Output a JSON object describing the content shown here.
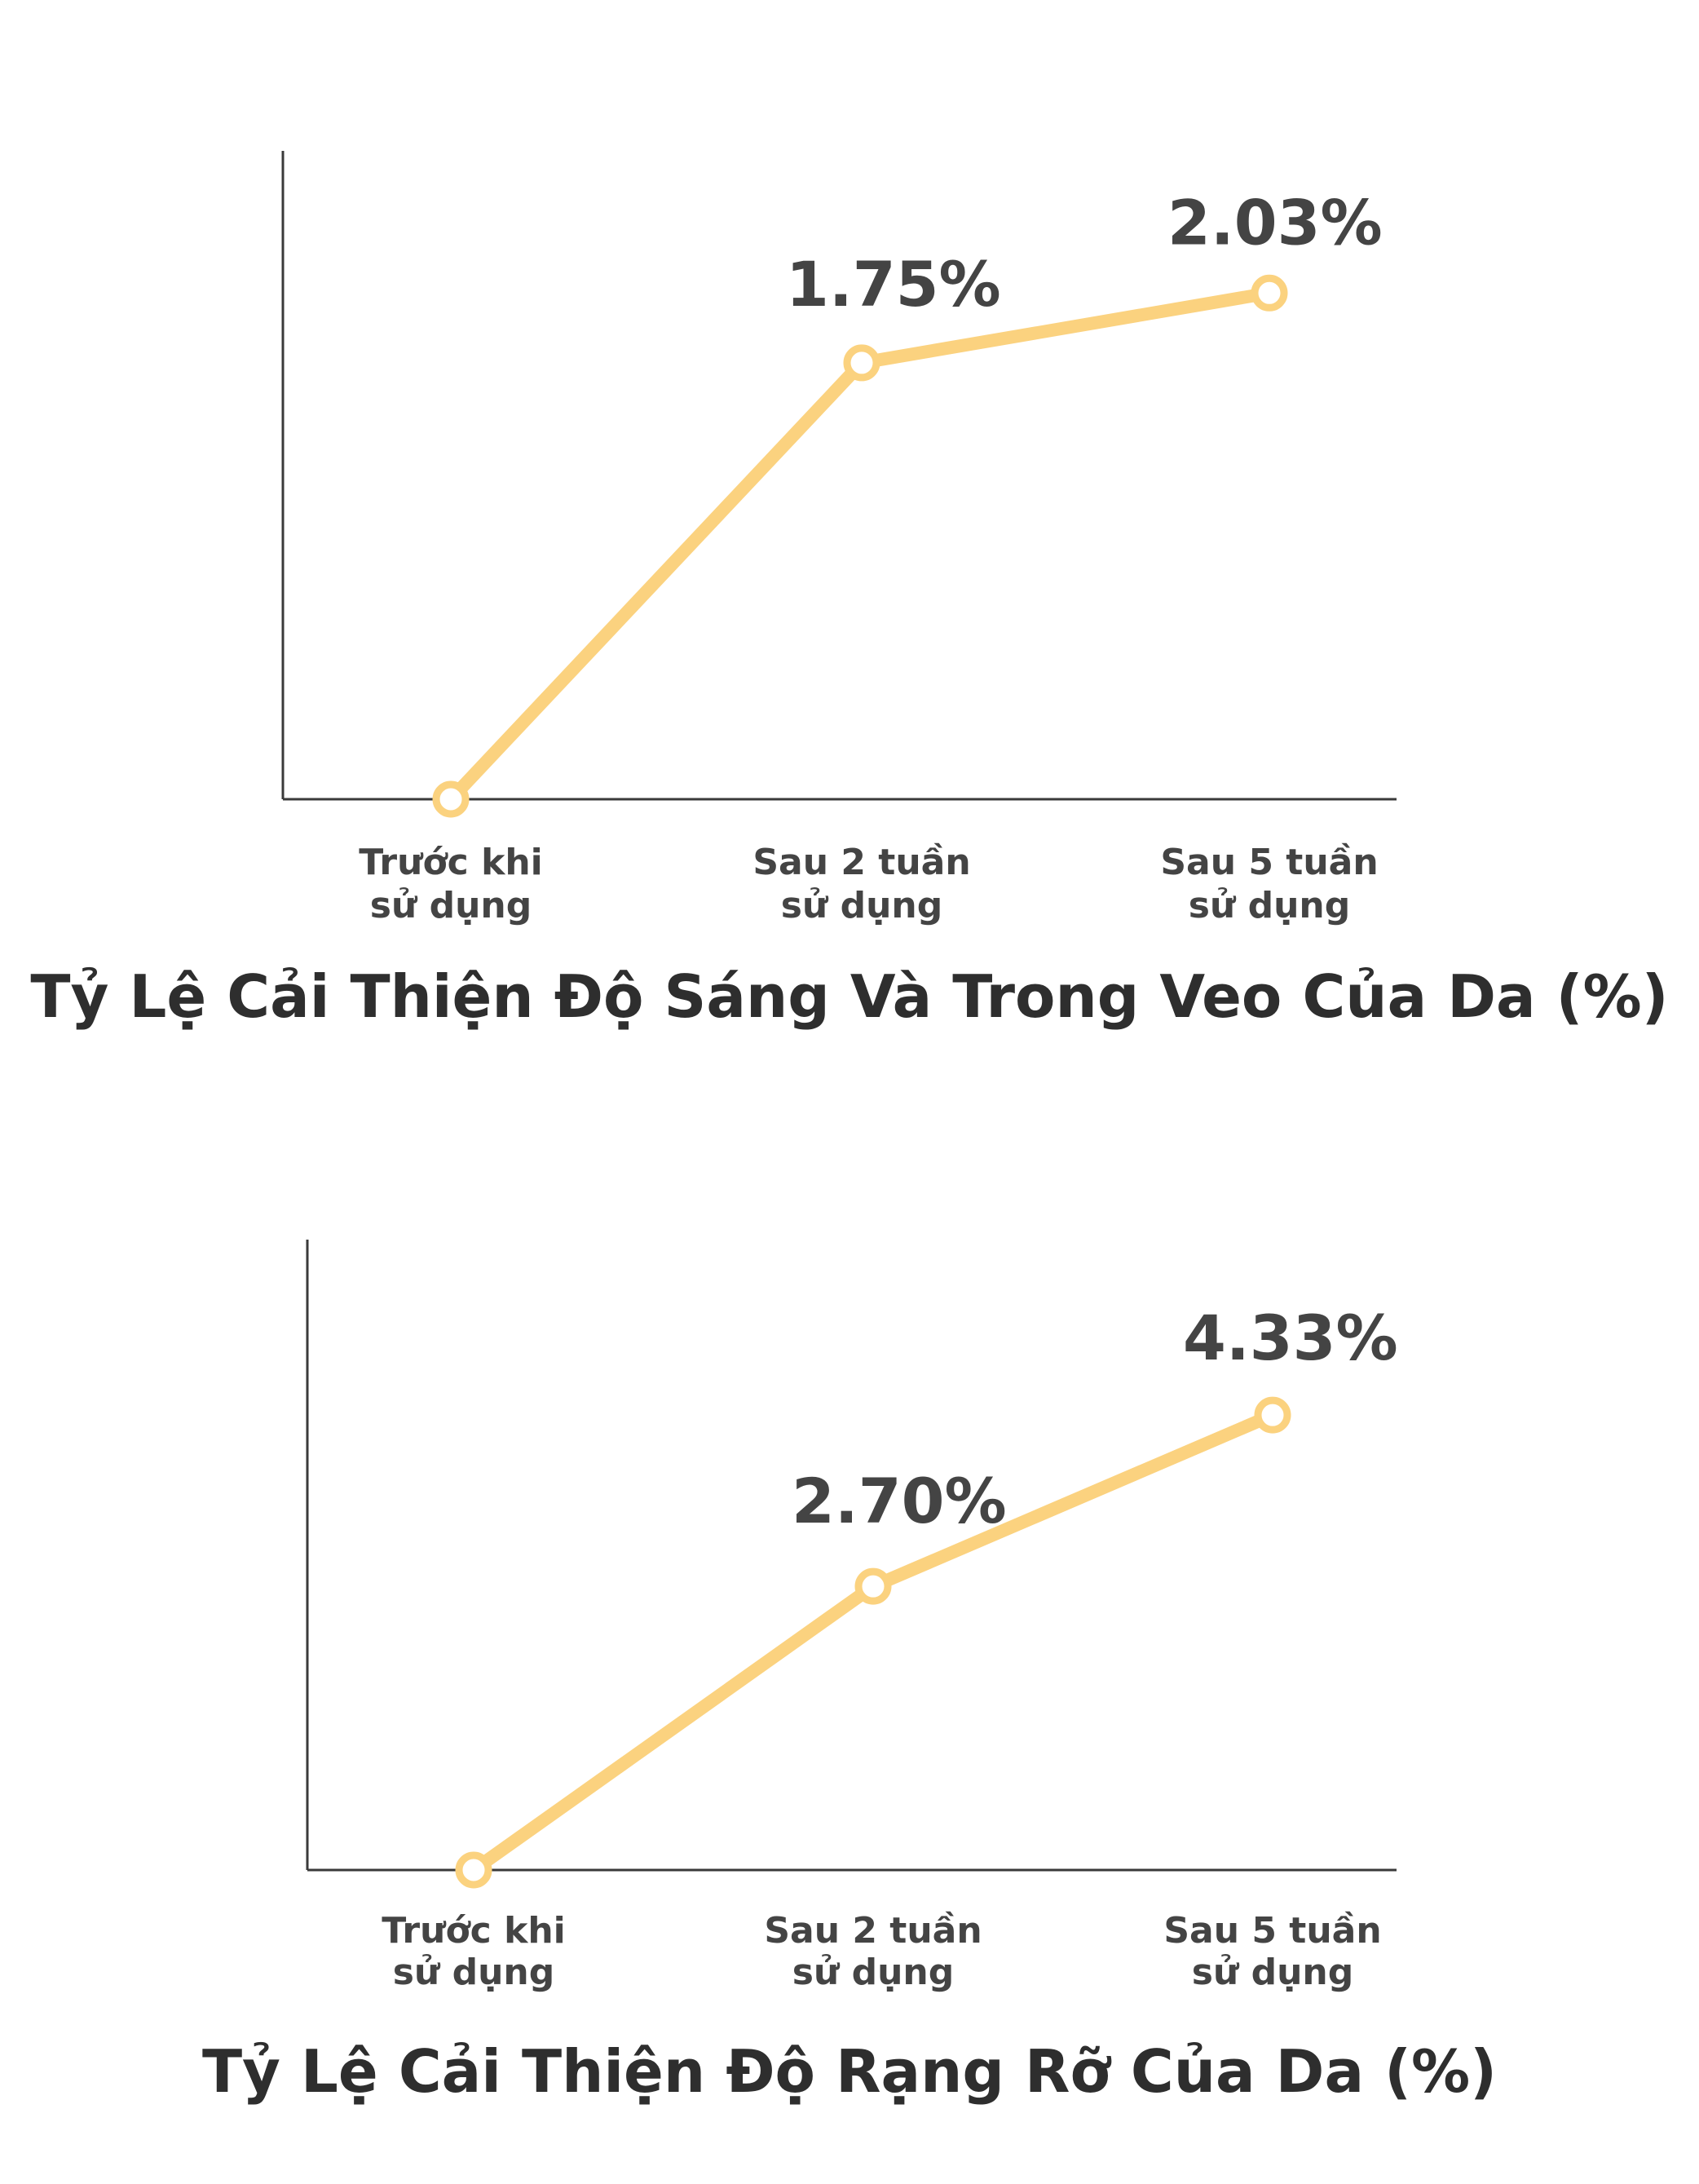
{
  "chart_data": [
    {
      "type": "line",
      "title": "Tỷ Lệ Cải Thiện Độ Sáng Và Trong Veo Của Da (%)",
      "categories": [
        [
          "Trước khi",
          "sử dụng"
        ],
        [
          "Sau 2 tuần",
          "sử dụng"
        ],
        [
          "Sau 5 tuần",
          "sử dụng"
        ]
      ],
      "values": [
        0,
        1.75,
        2.03
      ],
      "data_labels": [
        "",
        "1.75%",
        "2.03%"
      ],
      "ylim": [
        0,
        2.6
      ],
      "grid": false,
      "line_color": "#fbd27f"
    },
    {
      "type": "line",
      "title": "Tỷ Lệ Cải Thiện Độ Rạng Rỡ Của Da (%)",
      "categories": [
        [
          "Trước khi",
          "sử dụng"
        ],
        [
          "Sau 2 tuần",
          "sử dụng"
        ],
        [
          "Sau 5 tuần",
          "sử dụng"
        ]
      ],
      "values": [
        0,
        2.7,
        4.33
      ],
      "data_labels": [
        "",
        "2.70%",
        "4.33%"
      ],
      "ylim": [
        0,
        6.0
      ],
      "grid": false,
      "line_color": "#fbd27f"
    }
  ]
}
